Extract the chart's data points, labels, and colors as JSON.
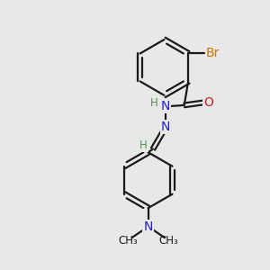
{
  "bg_color": "#e8e8e8",
  "bond_color": "#1a1a1a",
  "bond_width": 1.6,
  "atom_colors": {
    "C": "#1a1a1a",
    "H": "#5a8a5a",
    "N": "#2222cc",
    "O": "#cc2222",
    "Br": "#cc7700"
  },
  "font_size_atom": 10,
  "font_size_small": 8.5
}
